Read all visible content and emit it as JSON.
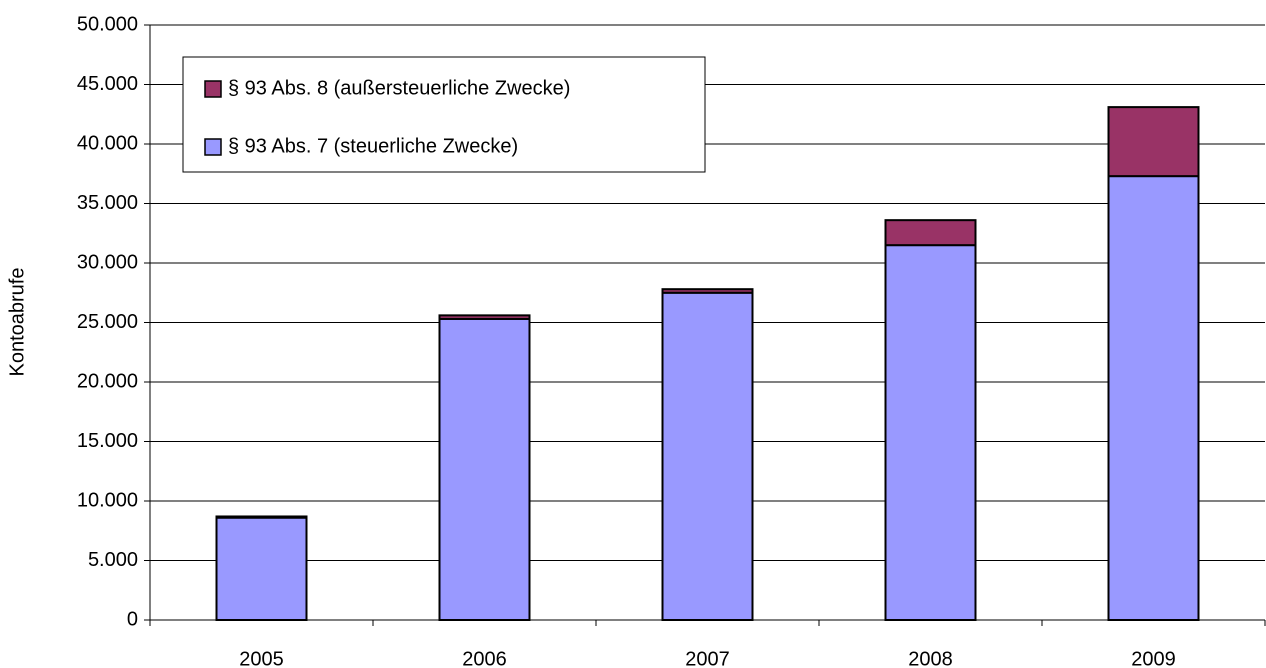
{
  "chart_data": {
    "type": "stacked_bar",
    "y_label": "Kontoabrufe",
    "categories": [
      "2005",
      "2006",
      "2007",
      "2008",
      "2009"
    ],
    "series": [
      {
        "name": "§ 93 Abs. 7 (steuerliche Zwecke)",
        "color": "#9999ff",
        "values": [
          8600,
          25300,
          27500,
          31500,
          37300
        ]
      },
      {
        "name": "§ 93 Abs. 8 (außersteuerliche Zwecke)",
        "color": "#993366",
        "values": [
          100,
          300,
          300,
          2100,
          5800
        ]
      }
    ],
    "ylim": [
      0,
      50000
    ],
    "yticks": [
      0,
      {
        "value": 5000,
        "label": "5.000"
      },
      {
        "value": 10000,
        "label": "10.000"
      },
      {
        "value": 15000,
        "label": "15.000"
      },
      {
        "value": 20000,
        "label": "20.000"
      },
      {
        "value": 25000,
        "label": "25.000"
      },
      {
        "value": 30000,
        "label": "30.000"
      },
      {
        "value": 35000,
        "label": "35.000"
      },
      {
        "value": 40000,
        "label": "40.000"
      },
      {
        "value": 45000,
        "label": "45.000"
      },
      {
        "value": 50000,
        "label": "50.000"
      }
    ],
    "grid": true,
    "legend": "upper left"
  }
}
